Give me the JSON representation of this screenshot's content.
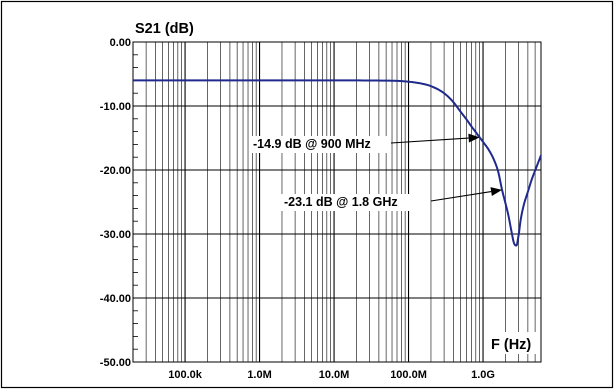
{
  "chart_data": {
    "type": "line",
    "title": "S21 (dB)",
    "xlabel": "F (Hz)",
    "ylabel": "",
    "x_scale": "log",
    "x_unit": "Hz",
    "xlim": [
      20000,
      6000000000
    ],
    "ylim": [
      -50,
      0
    ],
    "grid": true,
    "x_tick_values": [
      100000,
      1000000,
      10000000,
      100000000,
      1000000000
    ],
    "x_tick_labels": [
      "100.0k",
      "1.0M",
      "10.0M",
      "100.0M",
      "1.0G"
    ],
    "y_tick_values": [
      0,
      -10,
      -20,
      -30,
      -40,
      -50
    ],
    "y_tick_labels": [
      "0.00",
      "-10.00",
      "-20.00",
      "-30.00",
      "-40.00",
      "-50.00"
    ],
    "series": [
      {
        "color": "#1f2a8c",
        "x": [
          20000,
          1000000,
          10000000,
          60000000,
          100000000,
          150000000,
          200000000,
          300000000,
          400000000,
          500000000,
          600000000,
          700000000,
          800000000,
          900000000,
          1000000000,
          1200000000,
          1400000000,
          1600000000,
          1800000000,
          2000000000,
          2200000000,
          2400000000,
          2600000000,
          2800000000,
          3000000000,
          3200000000,
          3500000000,
          4000000000,
          4500000000,
          5000000000,
          6000000000
        ],
        "y": [
          -6.0,
          -6.0,
          -6.0,
          -6.05,
          -6.2,
          -6.5,
          -6.9,
          -8.0,
          -9.4,
          -10.9,
          -12.1,
          -13.2,
          -14.1,
          -14.9,
          -15.6,
          -16.9,
          -18.4,
          -20.3,
          -23.1,
          -25.2,
          -27.2,
          -29.5,
          -31.4,
          -31.8,
          -30.2,
          -27.8,
          -25.6,
          -23.4,
          -21.5,
          -20.1,
          -17.7
        ]
      }
    ],
    "annotations": [
      {
        "text": "-14.9 dB @ 900 MHz",
        "x": 900000000,
        "y": -14.9
      },
      {
        "text": "-23.1 dB @ 1.8 GHz",
        "x": 1800000000,
        "y": -23.1
      }
    ]
  }
}
